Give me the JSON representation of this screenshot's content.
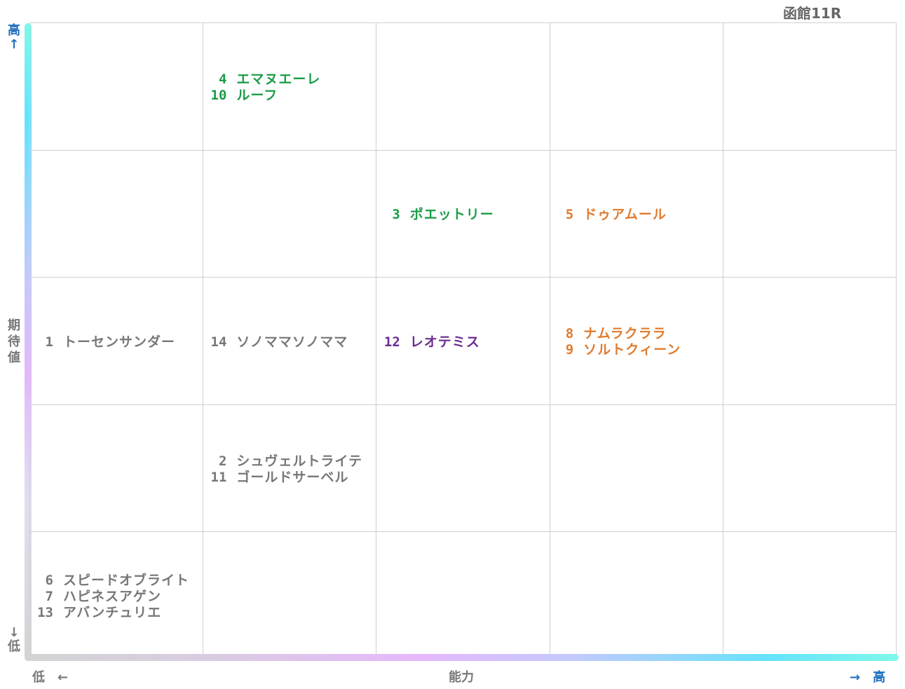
{
  "race_title": "函館11R",
  "axes": {
    "y_high": "高",
    "y_high_arrow": "↑",
    "y_label_chars": [
      "期",
      "待",
      "値"
    ],
    "y_low_arrow": "↓",
    "y_low": "低",
    "x_low": "低　←",
    "x_label": "能力",
    "x_high": "→　高"
  },
  "colors": {
    "green": "#1a9c47",
    "orange": "#e07b2e",
    "purple": "#6a2d91",
    "gray": "#777777"
  },
  "chart_data": {
    "type": "table",
    "xlabel": "能力",
    "ylabel": "期待値",
    "grid": true,
    "columns": 5,
    "rows": 5,
    "cells": [
      {
        "col": 1,
        "row": 0,
        "color": "green",
        "entries": [
          {
            "num": "4",
            "name": "エマヌエーレ"
          },
          {
            "num": "10",
            "name": "ルーフ"
          }
        ]
      },
      {
        "col": 2,
        "row": 1,
        "color": "green",
        "entries": [
          {
            "num": "3",
            "name": "ポエットリー"
          }
        ]
      },
      {
        "col": 3,
        "row": 1,
        "color": "orange",
        "entries": [
          {
            "num": "5",
            "name": "ドゥアムール"
          }
        ]
      },
      {
        "col": 0,
        "row": 2,
        "color": "gray",
        "entries": [
          {
            "num": "1",
            "name": "トーセンサンダー"
          }
        ]
      },
      {
        "col": 1,
        "row": 2,
        "color": "gray",
        "entries": [
          {
            "num": "14",
            "name": "ソノママソノママ"
          }
        ]
      },
      {
        "col": 2,
        "row": 2,
        "color": "purple",
        "entries": [
          {
            "num": "12",
            "name": "レオテミス"
          }
        ]
      },
      {
        "col": 3,
        "row": 2,
        "color": "orange",
        "entries": [
          {
            "num": "8",
            "name": "ナムラクララ"
          },
          {
            "num": "9",
            "name": "ソルトクィーン"
          }
        ]
      },
      {
        "col": 1,
        "row": 3,
        "color": "gray",
        "entries": [
          {
            "num": "2",
            "name": "シュヴェルトライテ"
          },
          {
            "num": "11",
            "name": "ゴールドサーベル"
          }
        ]
      },
      {
        "col": 0,
        "row": 4,
        "color": "gray",
        "entries": [
          {
            "num": "6",
            "name": "スピードオブライト"
          },
          {
            "num": "7",
            "name": "ハピネスアゲン"
          },
          {
            "num": "13",
            "name": "アバンチュリエ"
          }
        ]
      }
    ]
  }
}
